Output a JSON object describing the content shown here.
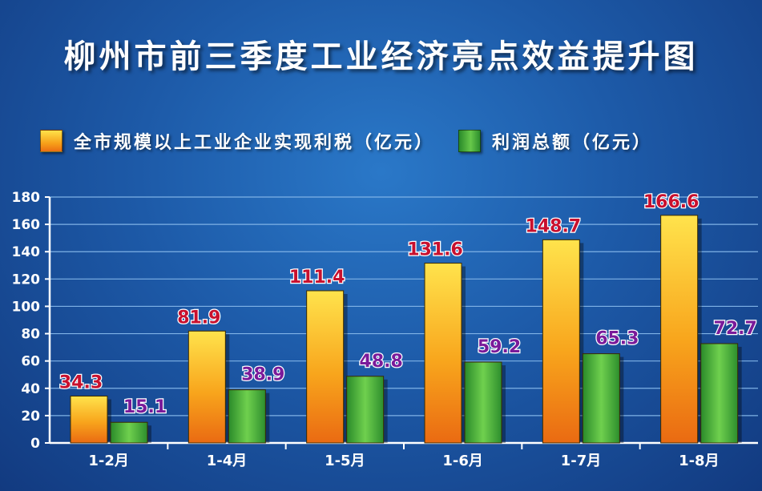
{
  "chart_data": {
    "type": "bar",
    "title": "柳州市前三季度工业经济亮点效益提升图",
    "categories": [
      "1-2月",
      "1-4月",
      "1-5月",
      "1-6月",
      "1-7月",
      "1-8月"
    ],
    "series": [
      {
        "name": "全市规模以上工业企业实现利税（亿元）",
        "values": [
          34.3,
          81.9,
          111.4,
          131.6,
          148.7,
          166.6
        ],
        "color": "#f5a01e"
      },
      {
        "name": "利润总额（亿元）",
        "values": [
          15.1,
          38.9,
          48.8,
          59.2,
          65.3,
          72.7
        ],
        "color": "#4cb33a"
      }
    ],
    "ylim": [
      0,
      180
    ],
    "yticks": [
      0,
      20,
      40,
      60,
      80,
      100,
      120,
      140,
      160,
      180
    ],
    "grid": true,
    "legend_position": "top-left"
  }
}
